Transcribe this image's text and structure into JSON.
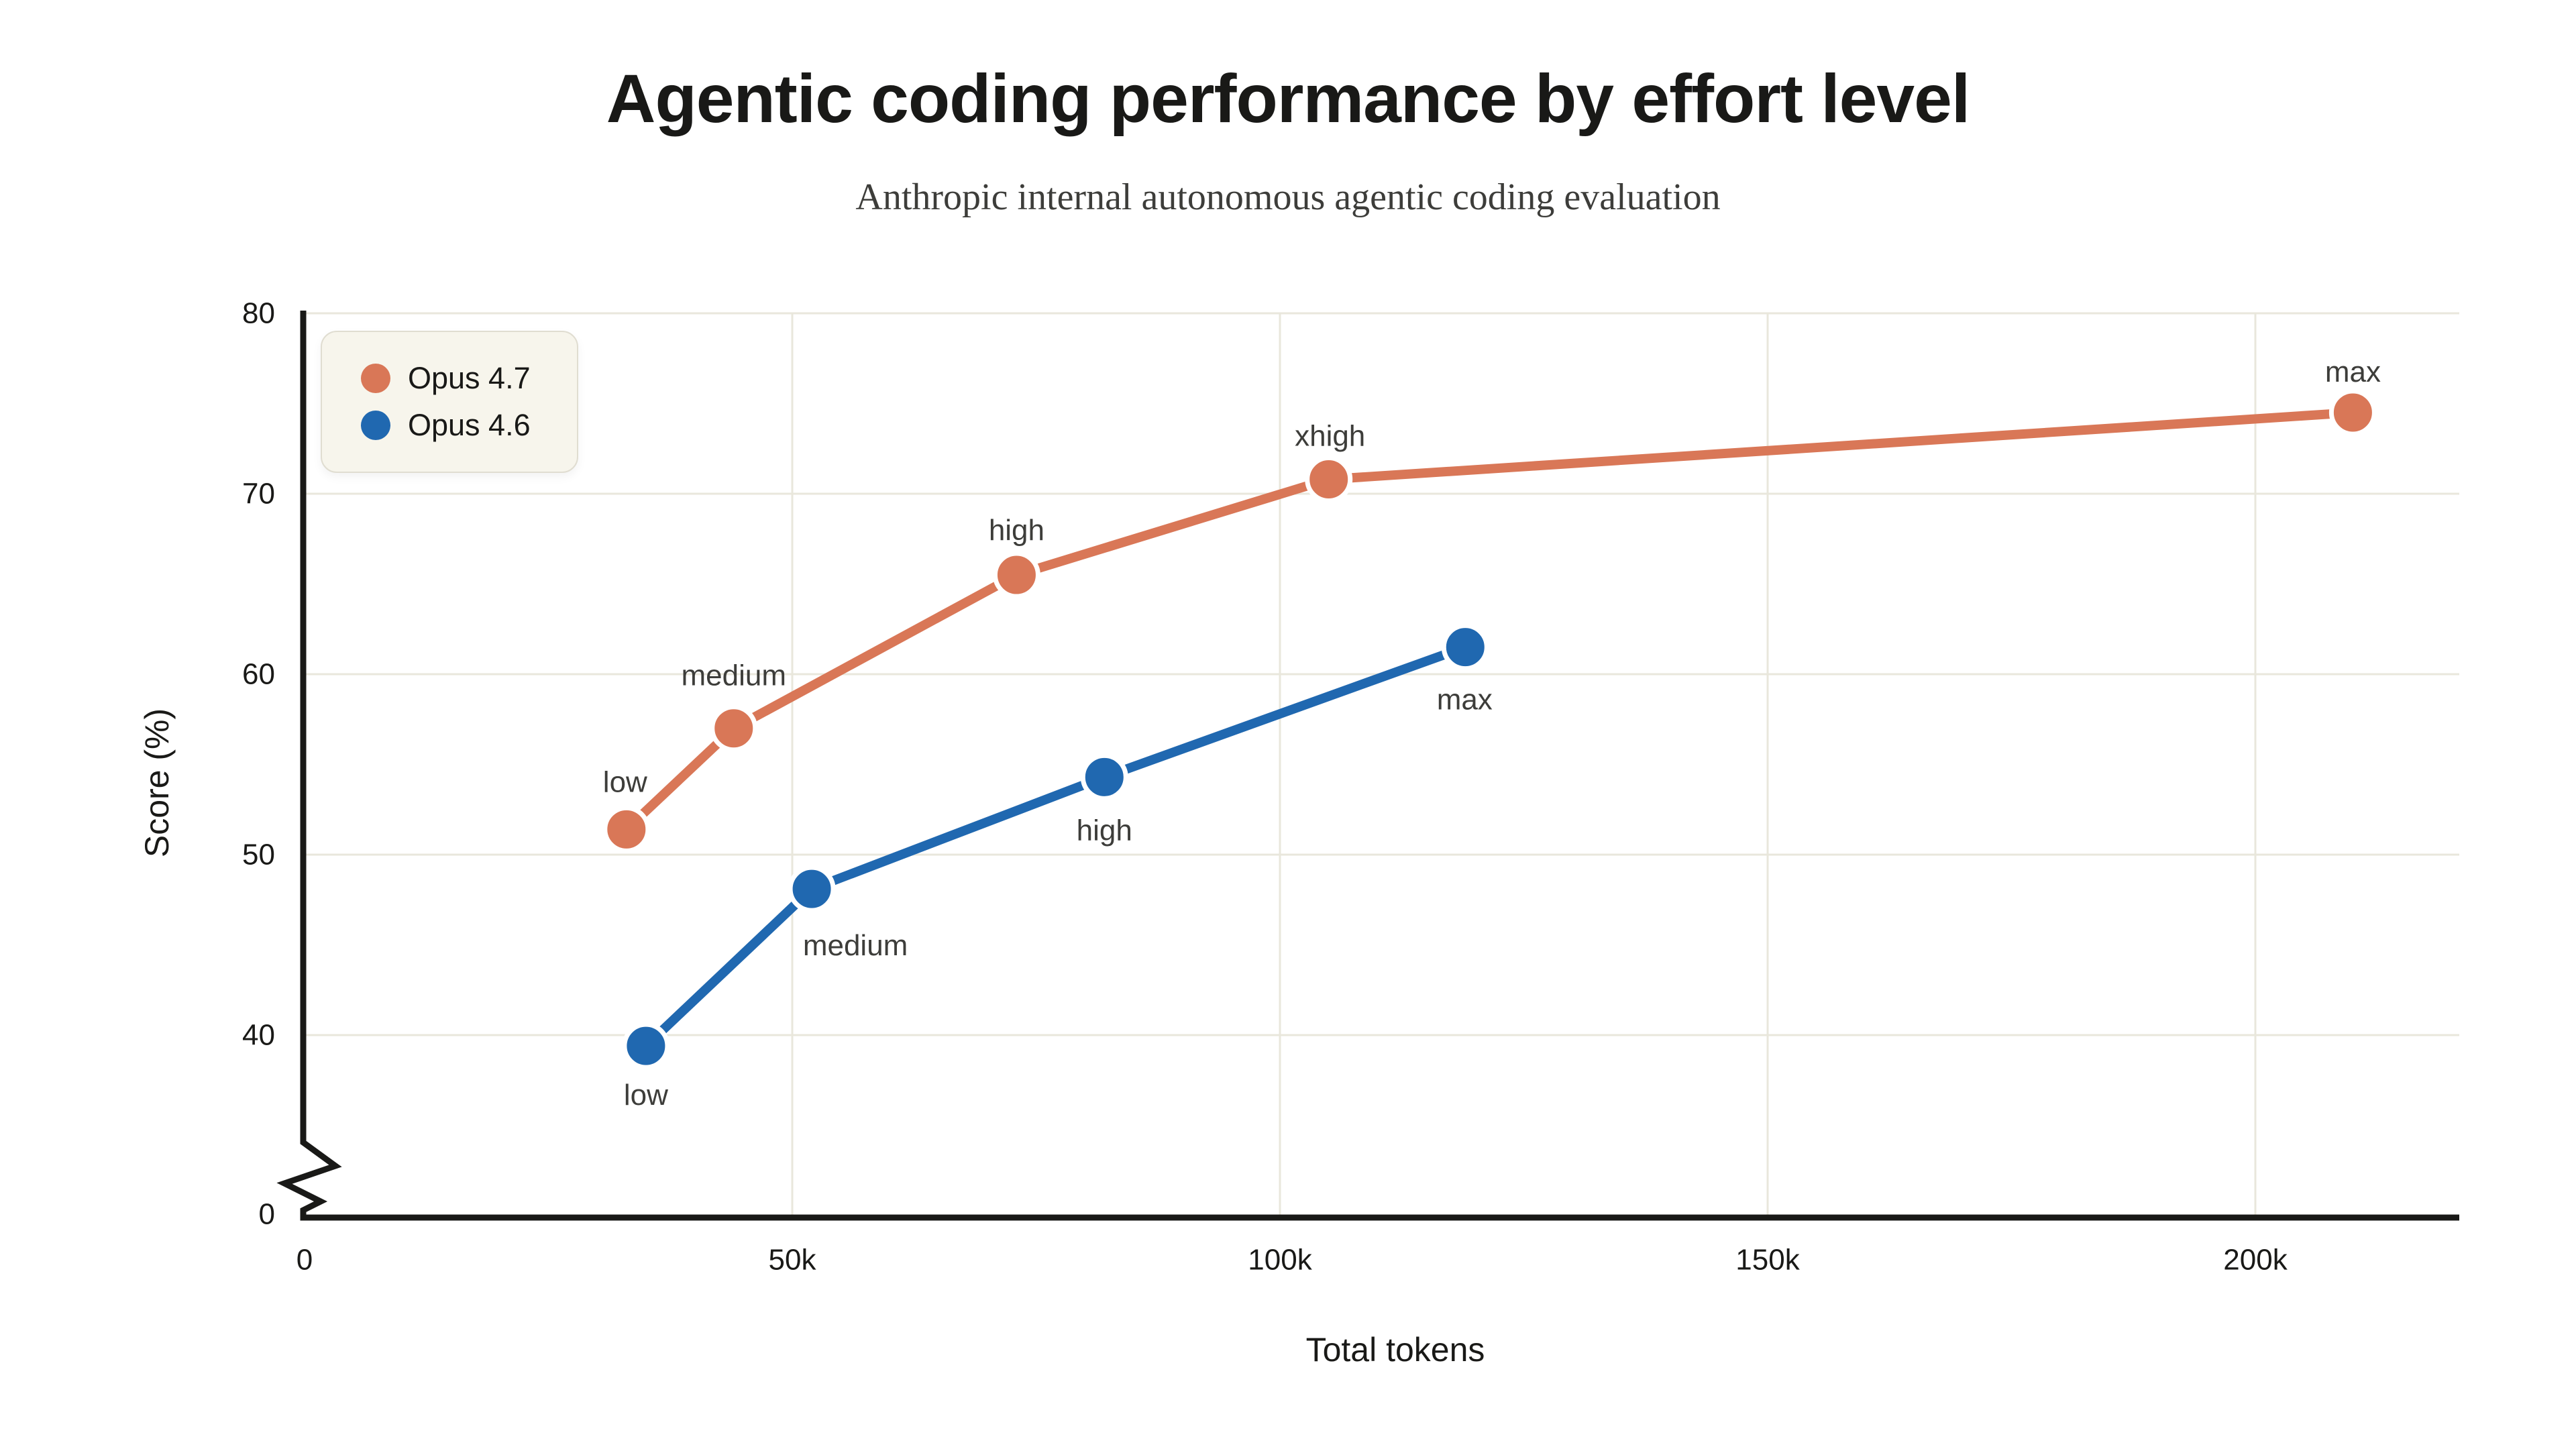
{
  "header": {
    "title": "Agentic coding performance by effort level",
    "subtitle": "Anthropic internal autonomous agentic coding evaluation"
  },
  "chart_data": {
    "type": "line",
    "title": "Agentic coding performance by effort level",
    "subtitle": "Anthropic internal autonomous agentic coding evaluation",
    "xlabel": "Total tokens",
    "ylabel": "Score (%)",
    "grid": true,
    "legend_position": "top-left",
    "y_axis_break": true,
    "xlim": [
      0,
      221000
    ],
    "ylim_main": [
      40,
      80
    ],
    "x_ticks": [
      {
        "value": 0,
        "label": "0"
      },
      {
        "value": 50000,
        "label": "50k"
      },
      {
        "value": 100000,
        "label": "100k"
      },
      {
        "value": 150000,
        "label": "150k"
      },
      {
        "value": 200000,
        "label": "200k"
      }
    ],
    "y_ticks": [
      {
        "value": 0,
        "label": "0"
      },
      {
        "value": 40,
        "label": "40"
      },
      {
        "value": 50,
        "label": "50"
      },
      {
        "value": 60,
        "label": "60"
      },
      {
        "value": 70,
        "label": "70"
      },
      {
        "value": 80,
        "label": "80"
      }
    ],
    "series": [
      {
        "name": "Opus 4.7",
        "color": "#d97757",
        "points": [
          {
            "label": "low",
            "tokens": 33000,
            "score": 51.4
          },
          {
            "label": "medium",
            "tokens": 44000,
            "score": 57.0
          },
          {
            "label": "high",
            "tokens": 73000,
            "score": 65.5
          },
          {
            "label": "xhigh",
            "tokens": 105000,
            "score": 70.8
          },
          {
            "label": "max",
            "tokens": 210000,
            "score": 74.5
          }
        ]
      },
      {
        "name": "Opus 4.6",
        "color": "#2068b0",
        "points": [
          {
            "label": "low",
            "tokens": 35000,
            "score": 39.4
          },
          {
            "label": "medium",
            "tokens": 52000,
            "score": 48.1
          },
          {
            "label": "high",
            "tokens": 82000,
            "score": 54.3
          },
          {
            "label": "max",
            "tokens": 119000,
            "score": 61.5
          }
        ]
      }
    ]
  },
  "style": {
    "background": "#ffffff",
    "text_color": "#191917",
    "muted_text_color": "#3d3d3a",
    "grid_color": "#e9e7dc",
    "axis_color": "#191917",
    "legend_bg": "#f7f5ec",
    "legend_border": "#e0ddd1",
    "series_orange": "#d97757",
    "series_blue": "#2068b0"
  }
}
